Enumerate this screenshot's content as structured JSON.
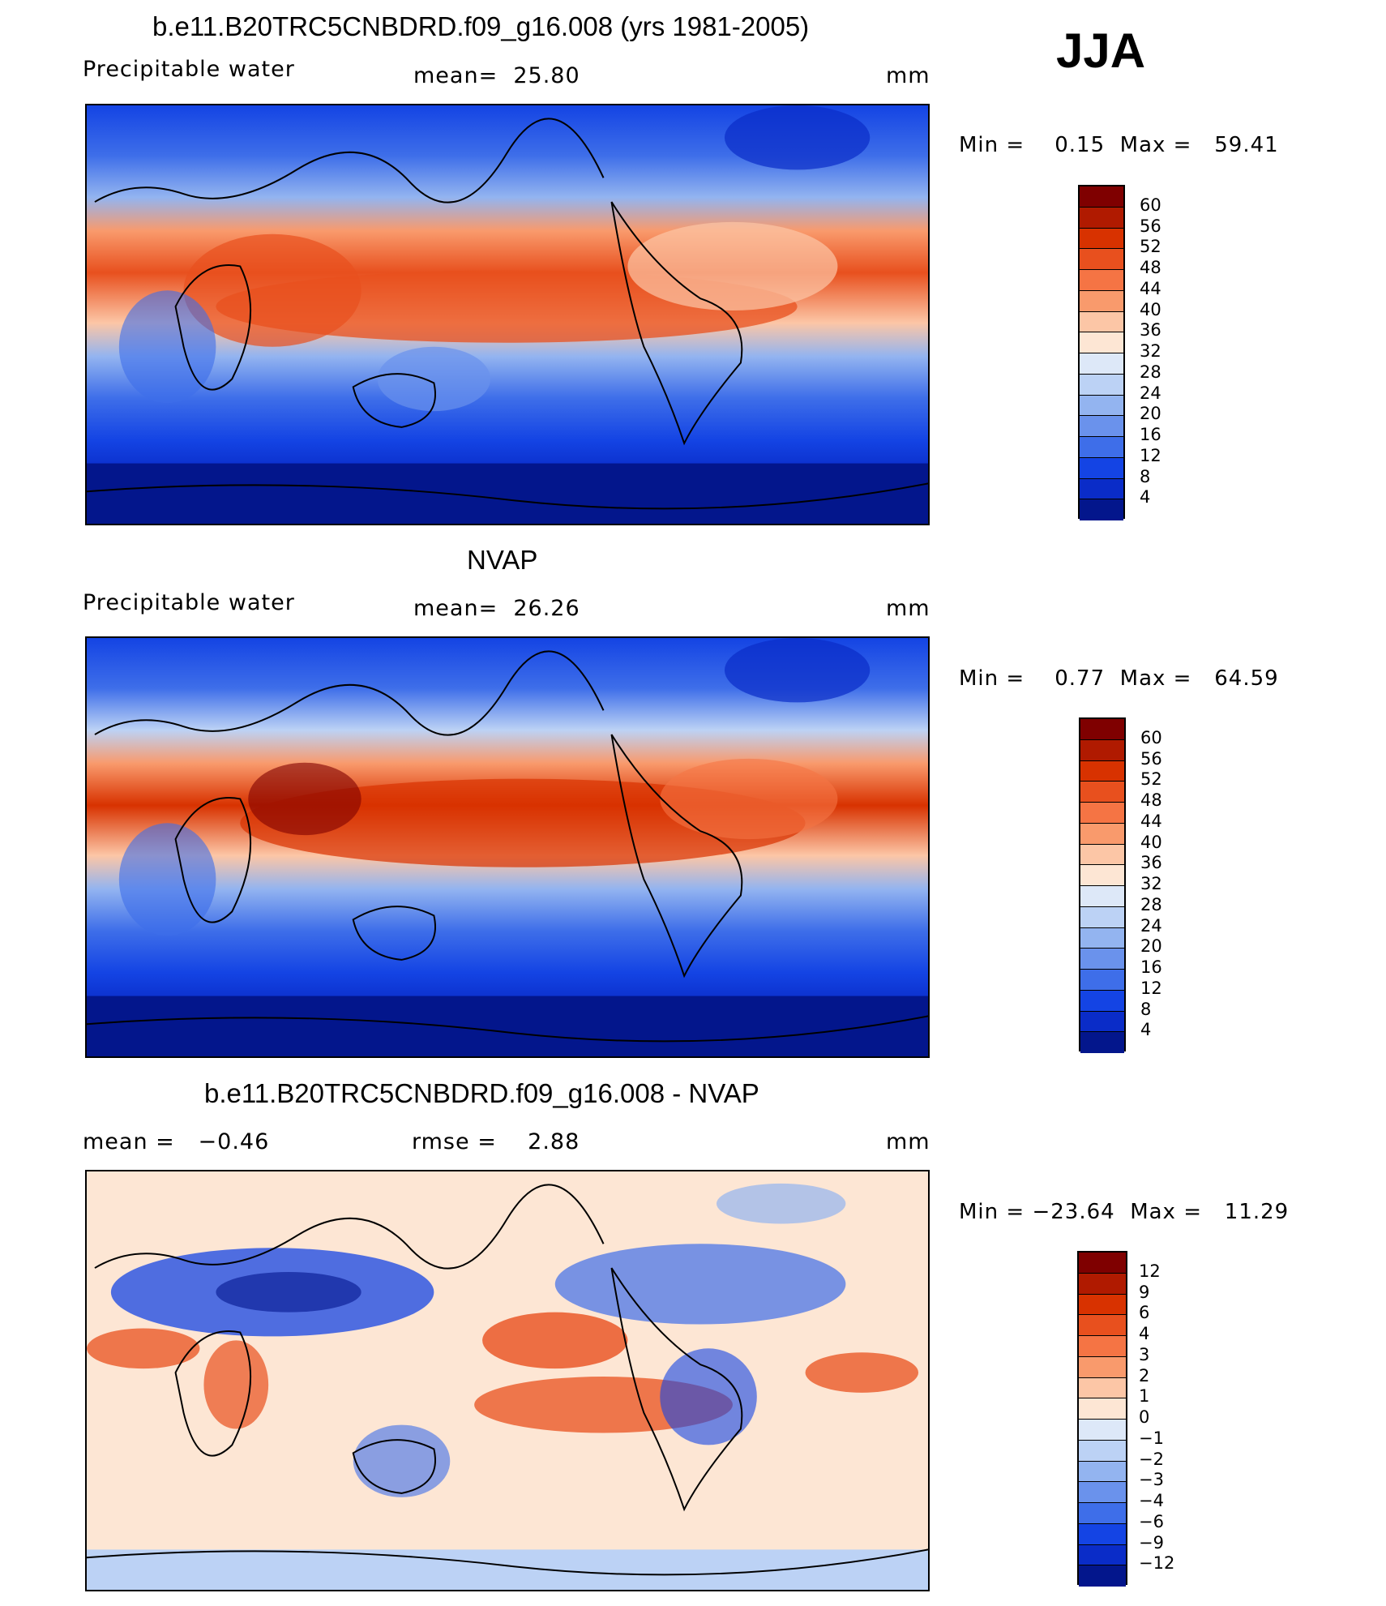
{
  "season": "JJA",
  "panels": [
    {
      "title": "b.e11.B20TRC5CNBDRD.f09_g16.008 (yrs 1981-2005)",
      "left_label": "Precipitable water",
      "center_label": "mean=  25.80",
      "units": "mm",
      "minmax": "Min =    0.15  Max =   59.41",
      "colorbar_ticks": [
        "60",
        "56",
        "52",
        "48",
        "44",
        "40",
        "36",
        "32",
        "28",
        "24",
        "20",
        "16",
        "12",
        "8",
        "4"
      ]
    },
    {
      "title": "NVAP",
      "left_label": "Precipitable water",
      "center_label": "mean=  26.26",
      "units": "mm",
      "minmax": "Min =    0.77  Max =   64.59",
      "colorbar_ticks": [
        "60",
        "56",
        "52",
        "48",
        "44",
        "40",
        "36",
        "32",
        "28",
        "24",
        "20",
        "16",
        "12",
        "8",
        "4"
      ]
    },
    {
      "title": "b.e11.B20TRC5CNBDRD.f09_g16.008 - NVAP",
      "left_label": "mean =   −0.46",
      "center_label": "rmse =    2.88",
      "units": "mm",
      "minmax": "Min = −23.64  Max =   11.29",
      "colorbar_ticks": [
        "12",
        "9",
        "6",
        "4",
        "3",
        "2",
        "1",
        "0",
        "−1",
        "−2",
        "−3",
        "−4",
        "−6",
        "−9",
        "−12"
      ]
    }
  ],
  "colors": {
    "abs_scale": [
      "#7f0000",
      "#b01a00",
      "#d83200",
      "#e8501e",
      "#f57444",
      "#f99a6c",
      "#fcc6a6",
      "#fde6d4",
      "#dde8f8",
      "#bcd2f5",
      "#93b4f0",
      "#6a92ec",
      "#3e6ee9",
      "#1444e4",
      "#0a2cc8",
      "#03168c"
    ],
    "diff_scale": [
      "#7f0000",
      "#b01a00",
      "#d83200",
      "#e8501e",
      "#f57444",
      "#f99a6c",
      "#fcc6a6",
      "#fde6d4",
      "#dde8f8",
      "#bcd2f5",
      "#93b4f0",
      "#6a92ec",
      "#3e6ee9",
      "#1444e4",
      "#0a2cc8",
      "#03168c"
    ]
  }
}
